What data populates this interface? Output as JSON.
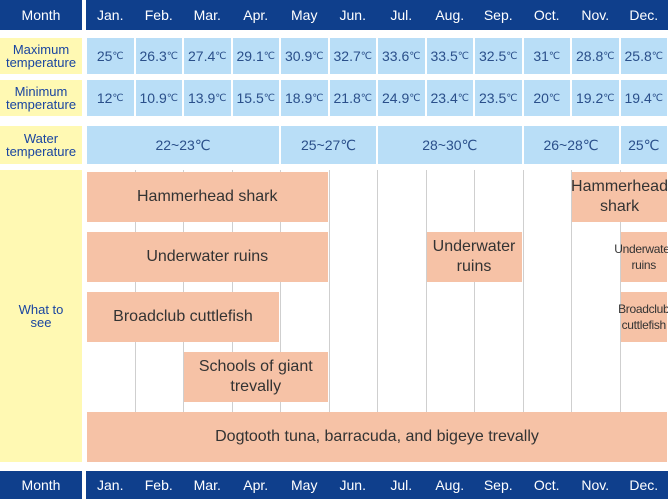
{
  "header": {
    "month_label": "Month",
    "months": [
      "Jan.",
      "Feb.",
      "Mar.",
      "Apr.",
      "May",
      "Jun.",
      "Jul.",
      "Aug.",
      "Sep.",
      "Oct.",
      "Nov.",
      "Dec."
    ]
  },
  "rows": {
    "max_temp": {
      "label": "Maximum temperature",
      "unit": "℃",
      "values": [
        "25",
        "26.3",
        "27.4",
        "29.1",
        "30.9",
        "32.7",
        "33.6",
        "33.5",
        "32.5",
        "31",
        "28.8",
        "25.8"
      ]
    },
    "min_temp": {
      "label": "Minimum temperature",
      "unit": "℃",
      "values": [
        "12",
        "10.9",
        "13.9",
        "15.5",
        "18.9",
        "21.8",
        "24.9",
        "23.4",
        "23.5",
        "20",
        "19.2",
        "19.4"
      ]
    },
    "water_temp": {
      "label": "Water temperature",
      "ranges": [
        {
          "text": "22~23℃",
          "months": "Jan.–Apr."
        },
        {
          "text": "25~27℃",
          "months": "May–Jun."
        },
        {
          "text": "28~30℃",
          "months": "Jul.–Sep."
        },
        {
          "text": "26~28℃",
          "months": "Oct.–Nov."
        },
        {
          "text": "25℃",
          "months": "Dec."
        }
      ]
    },
    "what_to_see": {
      "label": "What to see",
      "items": [
        {
          "text": "Hammerhead shark",
          "months": "Jan.–May"
        },
        {
          "text": "Hammerhead shark",
          "months": "Nov.–Dec."
        },
        {
          "text": "Underwater ruins",
          "months": "Jan.–May"
        },
        {
          "text": "Underwater ruins",
          "months": "Aug.–Sep."
        },
        {
          "text": "Underwater ruins",
          "months": "Dec."
        },
        {
          "text": "Broadclub cuttlefish",
          "months": "Jan.–Apr."
        },
        {
          "text": "Broadclub cuttlefish",
          "months": "Dec."
        },
        {
          "text": "Schools of giant trevally",
          "months": "Mar.–May"
        },
        {
          "text": "Dogtooth tuna, barracuda, and bigeye trevally",
          "months": "Jan.–Dec."
        }
      ]
    }
  },
  "colors": {
    "header_bg": "#0f3f8c",
    "label_bg": "#fff9b3",
    "label_text": "#1a45a0",
    "temp_cell_bg": "#b9def7",
    "bar_bg": "#f6c2a6"
  }
}
